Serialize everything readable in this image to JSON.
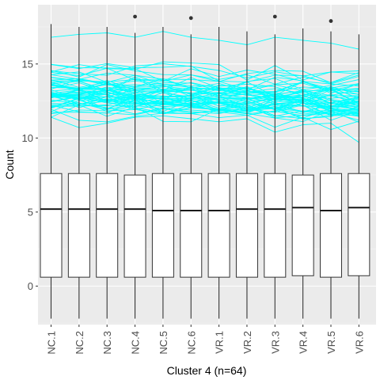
{
  "chart_data": {
    "type": "boxplot",
    "xlabel": "Cluster 4 (n=64)",
    "ylabel": "Count",
    "ylim": [
      -2.6,
      19.0
    ],
    "yticks": [
      0,
      5,
      10,
      15
    ],
    "categories": [
      "NC.1",
      "NC.2",
      "NC.3",
      "NC.4",
      "NC.5",
      "NC.6",
      "VR.1",
      "VR.2",
      "VR.3",
      "VR.4",
      "VR.5",
      "VR.6"
    ],
    "boxes": [
      {
        "category": "NC.1",
        "whisker_low": -2.2,
        "q1": 0.6,
        "median": 5.2,
        "q3": 7.6,
        "whisker_high": 17.7,
        "outliers": []
      },
      {
        "category": "NC.2",
        "whisker_low": -2.2,
        "q1": 0.6,
        "median": 5.2,
        "q3": 7.6,
        "whisker_high": 17.5,
        "outliers": []
      },
      {
        "category": "NC.3",
        "whisker_low": -2.2,
        "q1": 0.6,
        "median": 5.2,
        "q3": 7.6,
        "whisker_high": 17.5,
        "outliers": []
      },
      {
        "category": "NC.4",
        "whisker_low": -2.2,
        "q1": 0.6,
        "median": 5.2,
        "q3": 7.5,
        "whisker_high": 17.1,
        "outliers": [
          18.2
        ]
      },
      {
        "category": "NC.5",
        "whisker_low": -2.2,
        "q1": 0.6,
        "median": 5.1,
        "q3": 7.6,
        "whisker_high": 17.5,
        "outliers": []
      },
      {
        "category": "NC.6",
        "whisker_low": -2.2,
        "q1": 0.6,
        "median": 5.1,
        "q3": 7.6,
        "whisker_high": 17.0,
        "outliers": [
          18.1
        ]
      },
      {
        "category": "VR.1",
        "whisker_low": -2.2,
        "q1": 0.6,
        "median": 5.1,
        "q3": 7.6,
        "whisker_high": 17.5,
        "outliers": []
      },
      {
        "category": "VR.2",
        "whisker_low": -2.2,
        "q1": 0.6,
        "median": 5.2,
        "q3": 7.6,
        "whisker_high": 17.2,
        "outliers": []
      },
      {
        "category": "VR.3",
        "whisker_low": -2.2,
        "q1": 0.6,
        "median": 5.2,
        "q3": 7.6,
        "whisker_high": 17.0,
        "outliers": [
          18.2
        ]
      },
      {
        "category": "VR.4",
        "whisker_low": -2.2,
        "q1": 0.7,
        "median": 5.3,
        "q3": 7.5,
        "whisker_high": 17.4,
        "outliers": []
      },
      {
        "category": "VR.5",
        "whisker_low": -2.2,
        "q1": 0.6,
        "median": 5.1,
        "q3": 7.6,
        "whisker_high": 17.2,
        "outliers": [
          17.9
        ]
      },
      {
        "category": "VR.6",
        "whisker_low": -2.2,
        "q1": 0.7,
        "median": 5.3,
        "q3": 7.6,
        "whisker_high": 17.0,
        "outliers": []
      }
    ],
    "profile_lines": {
      "count": 64,
      "color": "#00FFFF",
      "approx_range": [
        9.7,
        17.2
      ],
      "top_profile": [
        16.8,
        17.0,
        17.1,
        16.8,
        17.2,
        16.8,
        16.6,
        16.3,
        16.8,
        16.6,
        16.4,
        16.0
      ],
      "bottom_profile": [
        11.4,
        10.7,
        11.0,
        11.4,
        11.5,
        11.3,
        11.1,
        11.3,
        10.4,
        10.9,
        11.0,
        9.7
      ]
    },
    "grid": true,
    "colors": {
      "panel_background": "#EBEBEB",
      "grid_major": "#FFFFFF",
      "box_fill": "#FFFFFF",
      "box_line": "#333333",
      "lines": "#00FFFF"
    }
  }
}
